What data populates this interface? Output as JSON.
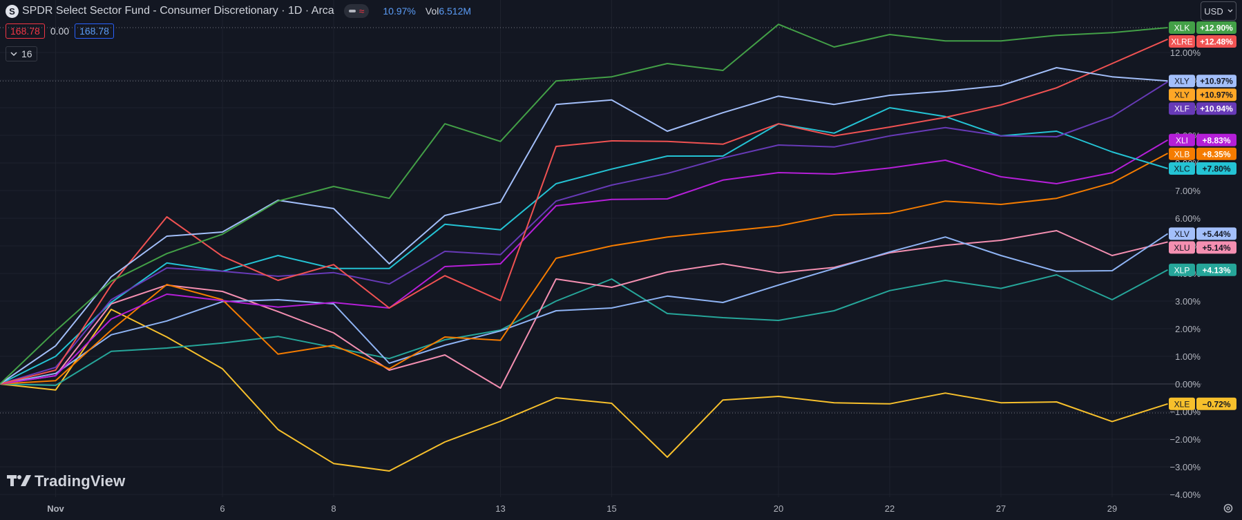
{
  "header": {
    "logo_letter": "S",
    "title": "SPDR Select Sector Fund - Consumer Discretionary · 1D · Arca",
    "approx_icon": "≈",
    "change": "10.97%",
    "vol_label": "Vol",
    "vol_value": "6.512M"
  },
  "ohlc": {
    "left_value": "168.78",
    "mid_value": "0.00",
    "right_value": "168.78"
  },
  "indicator_collapse": {
    "icon": "chevron-down-icon",
    "count": "16"
  },
  "currency_select": {
    "value": "USD"
  },
  "branding": "TradingView",
  "settings_icon": "gear-icon",
  "colors": {
    "background": "#131722",
    "grid": "#1e222d",
    "axis_text": "#b2b5be"
  },
  "chart_data": {
    "type": "line",
    "title": "SPDR Select Sector Fund - Consumer Discretionary · 1D · Arca",
    "x": [
      0,
      1,
      2,
      3,
      4,
      5,
      6,
      7,
      8,
      9,
      10,
      11,
      12,
      13,
      14,
      15,
      16,
      17,
      18,
      19,
      20,
      21
    ],
    "x_tick_labels": [
      {
        "x": 1,
        "label": "Nov"
      },
      {
        "x": 4,
        "label": "6"
      },
      {
        "x": 6,
        "label": "8"
      },
      {
        "x": 9,
        "label": "13"
      },
      {
        "x": 11,
        "label": "15"
      },
      {
        "x": 14,
        "label": "20"
      },
      {
        "x": 16,
        "label": "22"
      },
      {
        "x": 18,
        "label": "27"
      },
      {
        "x": 20,
        "label": "29"
      }
    ],
    "y_ticks": [
      -4,
      -3,
      -2,
      -1,
      0,
      1,
      2,
      3,
      4,
      5,
      6,
      7,
      8,
      9,
      10,
      11,
      12
    ],
    "y_tick_labels": [
      "−4.00%",
      "−3.00%",
      "−2.00%",
      "−1.00%",
      "0.00%",
      "1.00%",
      "2.00%",
      "3.00%",
      "4.00%",
      "5.00%",
      "6.00%",
      "7.00%",
      "8.00%",
      "9.00%",
      "10.00%",
      "11.00%",
      "12.00%"
    ],
    "ylim": [
      -4.18,
      13.9
    ],
    "xlim": [
      0,
      22.4
    ],
    "dotted_levels": [
      12.9,
      10.97,
      -1.05
    ],
    "series": [
      {
        "name": "XLE",
        "color": "#f7c02c",
        "label": "−0.72%",
        "values": [
          0,
          -0.22,
          2.7,
          1.7,
          0.55,
          -1.65,
          -2.88,
          -3.15,
          -2.1,
          -1.35,
          -0.5,
          -0.7,
          -2.65,
          -0.58,
          -0.45,
          -0.68,
          -0.72,
          -0.33,
          -0.68,
          -0.65,
          -1.36,
          -0.72
        ]
      },
      {
        "name": "XLP",
        "color": "#26a69a",
        "label": "+4.13%",
        "values": [
          0,
          -0.05,
          1.18,
          1.3,
          1.48,
          1.72,
          1.32,
          0.92,
          1.6,
          1.95,
          3.0,
          3.8,
          2.55,
          2.4,
          2.3,
          2.65,
          3.38,
          3.75,
          3.46,
          3.95,
          3.05,
          4.13
        ]
      },
      {
        "name": "XLU",
        "color": "#f48fb1",
        "label": "+5.14%",
        "values": [
          0,
          0.3,
          2.9,
          3.58,
          3.35,
          2.62,
          1.85,
          0.5,
          1.05,
          -0.15,
          3.8,
          3.5,
          4.05,
          4.35,
          4.02,
          4.22,
          4.75,
          5.02,
          5.2,
          5.55,
          4.65,
          5.14
        ]
      },
      {
        "name": "XLV",
        "color": "#8fb4f5",
        "label": "+5.44%",
        "values": [
          0,
          0.38,
          1.78,
          2.28,
          2.98,
          3.05,
          2.9,
          0.75,
          1.4,
          1.92,
          2.65,
          2.75,
          3.18,
          2.95,
          3.58,
          4.18,
          4.78,
          5.32,
          4.65,
          4.08,
          4.1,
          5.44
        ]
      },
      {
        "name": "XLB",
        "color": "#f57c00",
        "label": "+8.35%",
        "values": [
          0,
          0.12,
          1.95,
          3.6,
          3.05,
          1.08,
          1.4,
          0.55,
          1.7,
          1.58,
          4.55,
          5.0,
          5.32,
          5.52,
          5.72,
          6.12,
          6.18,
          6.62,
          6.5,
          6.72,
          7.28,
          8.35
        ]
      },
      {
        "name": "XLI",
        "color": "#b51fd8",
        "label": "+8.83%",
        "values": [
          0,
          0.3,
          2.35,
          3.25,
          3.02,
          2.78,
          2.95,
          2.75,
          4.25,
          4.35,
          6.45,
          6.68,
          6.7,
          7.38,
          7.65,
          7.6,
          7.82,
          8.1,
          7.5,
          7.25,
          7.65,
          8.83
        ]
      },
      {
        "name": "XLC",
        "color": "#24c3d4",
        "label": "+7.80%",
        "values": [
          0,
          1.0,
          2.95,
          4.38,
          4.08,
          4.65,
          4.18,
          4.18,
          5.78,
          5.58,
          7.25,
          7.78,
          8.25,
          8.25,
          9.42,
          9.08,
          10.0,
          9.68,
          8.98,
          9.15,
          8.4,
          7.8
        ]
      },
      {
        "name": "XLF",
        "color": "#673ab7",
        "label": "+10.94%",
        "values": [
          0,
          0.6,
          3.05,
          4.2,
          4.08,
          3.9,
          4.03,
          3.62,
          4.8,
          4.68,
          6.62,
          7.2,
          7.62,
          8.18,
          8.65,
          8.58,
          8.98,
          9.28,
          8.98,
          8.95,
          9.68,
          10.94
        ]
      },
      {
        "name": "XLRE",
        "color": "#f05252",
        "label": "+12.48%",
        "values": [
          0,
          0.5,
          3.58,
          6.05,
          4.62,
          3.75,
          4.32,
          2.75,
          3.92,
          3.02,
          8.6,
          8.8,
          8.78,
          8.68,
          9.42,
          8.98,
          9.3,
          9.65,
          10.1,
          10.72,
          11.6,
          12.48
        ]
      },
      {
        "name": "XLY",
        "color": "#a3bffa",
        "label": "+10.97%",
        "values": [
          0,
          1.38,
          3.88,
          5.35,
          5.5,
          6.65,
          6.35,
          4.35,
          6.1,
          6.58,
          10.12,
          10.28,
          9.15,
          9.82,
          10.42,
          10.12,
          10.45,
          10.6,
          10.8,
          11.45,
          11.12,
          10.97
        ]
      },
      {
        "name": "XLK",
        "color": "#43a047",
        "label": "+12.90%",
        "values": [
          0,
          1.92,
          3.72,
          4.72,
          5.42,
          6.62,
          7.15,
          6.72,
          9.42,
          8.78,
          10.97,
          11.12,
          11.6,
          11.35,
          13.02,
          12.2,
          12.65,
          12.42,
          12.42,
          12.62,
          12.72,
          12.9
        ]
      }
    ],
    "end_labels": [
      {
        "name": "XLK",
        "label": "+12.90%",
        "color": "#43a047",
        "text_color": "#ffffff"
      },
      {
        "name": "XLRE",
        "label": "+12.48%",
        "color": "#f05252",
        "text_color": "#ffffff"
      },
      {
        "name": "XLY",
        "label": "+10.97%",
        "color": "#a3bffa",
        "text_color": "#131722"
      },
      {
        "name": "XLY",
        "label": "+10.97%",
        "color": "#ffa726",
        "text_color": "#131722"
      },
      {
        "name": "XLF",
        "label": "+10.94%",
        "color": "#673ab7",
        "text_color": "#ffffff"
      },
      {
        "name": "XLI",
        "label": "+8.83%",
        "color": "#b51fd8",
        "text_color": "#ffffff"
      },
      {
        "name": "XLB",
        "label": "+8.35%",
        "color": "#f57c00",
        "text_color": "#ffffff"
      },
      {
        "name": "XLC",
        "label": "+7.80%",
        "color": "#24c3d4",
        "text_color": "#131722"
      },
      {
        "name": "XLV",
        "label": "+5.44%",
        "color": "#a3bffa",
        "text_color": "#131722"
      },
      {
        "name": "XLU",
        "label": "+5.14%",
        "color": "#f48fb1",
        "text_color": "#131722"
      },
      {
        "name": "XLP",
        "label": "+4.13%",
        "color": "#26a69a",
        "text_color": "#ffffff"
      },
      {
        "name": "XLE",
        "label": "−0.72%",
        "color": "#f7c02c",
        "text_color": "#131722"
      }
    ]
  }
}
